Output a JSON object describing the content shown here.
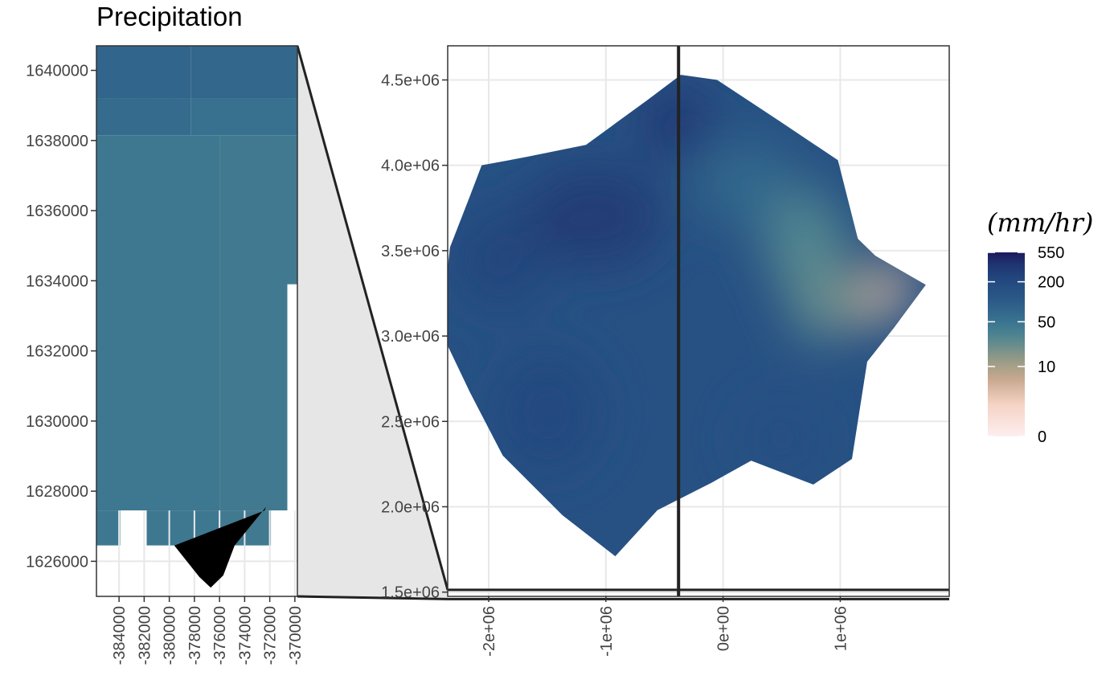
{
  "chart_data": [
    {
      "type": "heatmap",
      "panel": "inset",
      "title": "Precipitation",
      "xlabel": "",
      "ylabel": "",
      "x_ticks": [
        -384000,
        -382000,
        -380000,
        -378000,
        -376000,
        -374000,
        -372000,
        -370000
      ],
      "x_tick_labels": [
        "-384000",
        "-382000",
        "-380000",
        "-378000",
        "-376000",
        "-374000",
        "-372000",
        "-370000"
      ],
      "y_ticks": [
        1626000,
        1628000,
        1630000,
        1632000,
        1634000,
        1636000,
        1638000,
        1640000
      ],
      "y_tick_labels": [
        "1626000",
        "1628000",
        "1630000",
        "1632000",
        "1634000",
        "1636000",
        "1638000",
        "1640000"
      ],
      "xlim": [
        -385800,
        -369800
      ],
      "ylim": [
        1625000,
        1640700
      ],
      "grid": true,
      "cells": [
        {
          "x0": -385800,
          "x1": -378300,
          "y0": 1639200,
          "y1": 1640700,
          "value": 75
        },
        {
          "x0": -378300,
          "x1": -369800,
          "y0": 1639200,
          "y1": 1640700,
          "value": 70
        },
        {
          "x0": -385800,
          "x1": -378300,
          "y0": 1638150,
          "y1": 1639200,
          "value": 65
        },
        {
          "x0": -378300,
          "x1": -369800,
          "y0": 1638150,
          "y1": 1639200,
          "value": 55
        },
        {
          "x0": -385800,
          "x1": -376000,
          "y0": 1627450,
          "y1": 1638150,
          "value": 45
        },
        {
          "x0": -376000,
          "x1": -369800,
          "y0": 1627450,
          "y1": 1638150,
          "value": 42
        },
        {
          "x0": -385800,
          "x1": -383900,
          "y0": 1626450,
          "y1": 1627450,
          "value": 45
        },
        {
          "x0": -381800,
          "x1": -376000,
          "y0": 1626450,
          "y1": 1627450,
          "value": 45
        },
        {
          "x0": -376000,
          "x1": -371900,
          "y0": 1626450,
          "y1": 1627450,
          "value": 42
        }
      ],
      "blank_regions": [
        {
          "x0": -385800,
          "x1": -383900,
          "y0": 1625000,
          "y1": 1626450
        },
        {
          "x0": -383900,
          "x1": -381800,
          "y0": 1625000,
          "y1": 1627450
        },
        {
          "x0": -381800,
          "x1": -371900,
          "y0": 1625000,
          "y1": 1626450
        },
        {
          "x0": -371900,
          "x1": -369800,
          "y0": 1625000,
          "y1": 1627450
        },
        {
          "x0": -370600,
          "x1": -369800,
          "y0": 1627450,
          "y1": 1633900
        }
      ],
      "outline_polygon": [
        [
          -379600,
          1626450
        ],
        [
          -377600,
          1625550
        ],
        [
          -376700,
          1625250
        ],
        [
          -375700,
          1625600
        ],
        [
          -374800,
          1626450
        ],
        [
          -372300,
          1627550
        ],
        [
          -372400,
          1627450
        ]
      ]
    },
    {
      "type": "heatmap",
      "panel": "main",
      "xlabel": "",
      "ylabel": "",
      "x_ticks": [
        -2000000,
        -1000000,
        0,
        1000000
      ],
      "x_tick_labels": [
        "-2e+06",
        "-1e+06",
        "0e+00",
        "1e+06"
      ],
      "y_ticks": [
        1500000,
        2000000,
        2500000,
        3000000,
        3500000,
        4000000,
        4500000
      ],
      "y_tick_labels": [
        "1.5e+06",
        "2.0e+06",
        "2.5e+06",
        "3.0e+06",
        "3.5e+06",
        "4.0e+06",
        "4.5e+06"
      ],
      "xlim": [
        -2350000,
        1930000
      ],
      "ylim": [
        1475000,
        4700000
      ],
      "grid": true,
      "region_outline": [
        [
          -2160000,
          3820000
        ],
        [
          -2060000,
          4000000
        ],
        [
          -1670000,
          4050000
        ],
        [
          -1170000,
          4120000
        ],
        [
          -650000,
          4380000
        ],
        [
          -360000,
          4530000
        ],
        [
          -50000,
          4500000
        ],
        [
          480000,
          4260000
        ],
        [
          980000,
          4030000
        ],
        [
          1150000,
          3570000
        ],
        [
          1300000,
          3470000
        ],
        [
          1730000,
          3300000
        ],
        [
          1460000,
          3050000
        ],
        [
          1230000,
          2850000
        ],
        [
          1100000,
          2280000
        ],
        [
          770000,
          2130000
        ],
        [
          240000,
          2270000
        ],
        [
          -100000,
          2140000
        ],
        [
          -560000,
          1980000
        ],
        [
          -920000,
          1710000
        ],
        [
          -1370000,
          1950000
        ],
        [
          -1880000,
          2300000
        ],
        [
          -2160000,
          2670000
        ],
        [
          -2410000,
          3030000
        ],
        [
          -2330000,
          3520000
        ]
      ],
      "zones": [
        {
          "x": -1900000,
          "y": 3450000,
          "rx": 400000,
          "ry": 300000,
          "value": 220
        },
        {
          "x": -1100000,
          "y": 3700000,
          "rx": 600000,
          "ry": 300000,
          "value": 300
        },
        {
          "x": -1500000,
          "y": 2550000,
          "rx": 450000,
          "ry": 350000,
          "value": 200
        },
        {
          "x": -400000,
          "y": 4250000,
          "rx": 300000,
          "ry": 200000,
          "value": 320
        },
        {
          "x": 500000,
          "y": 2400000,
          "rx": 350000,
          "ry": 220000,
          "value": 160
        },
        {
          "x": 200000,
          "y": 3900000,
          "rx": 450000,
          "ry": 250000,
          "value": 70
        },
        {
          "x": 700000,
          "y": 3550000,
          "rx": 350000,
          "ry": 300000,
          "value": 30
        },
        {
          "x": 850000,
          "y": 3250000,
          "rx": 300000,
          "ry": 280000,
          "value": 25
        },
        {
          "x": 1200000,
          "y": 3200000,
          "rx": 250000,
          "ry": 120000,
          "value": 14
        },
        {
          "x": 1450000,
          "y": 3320000,
          "rx": 160000,
          "ry": 120000,
          "value": 5
        },
        {
          "x": 1380000,
          "y": 3180000,
          "rx": 110000,
          "ry": 80000,
          "value": 3
        }
      ],
      "crosshair": {
        "x": -380000,
        "y": 1633000
      }
    }
  ],
  "legend": {
    "title": "(mm/hr)",
    "type": "colorbar",
    "scale": "pseudo-log",
    "breaks": [
      550,
      200,
      50,
      10,
      0
    ],
    "break_labels": [
      "550",
      "200",
      "50",
      "10",
      "0"
    ],
    "colors": [
      "#1c1a5e",
      "#1f3f7d",
      "#2a5d8a",
      "#3d7f8e",
      "#a9a383",
      "#f5d3c4",
      "#fdeef0"
    ],
    "placement": "right"
  },
  "colors": {
    "panel_border": "#333333",
    "gridline": "#e8e8e8",
    "zoom_wedge": "#e6e6e6",
    "crosshair": "#222222"
  }
}
